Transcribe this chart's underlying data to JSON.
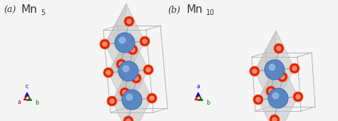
{
  "figsize": [
    4.74,
    1.7
  ],
  "dpi": 100,
  "background_color": "#f5f5f5",
  "panel_a_label": "(a)",
  "panel_b_label": "(b)",
  "panel_a_title": "Mn",
  "panel_a_subscript": "5",
  "panel_b_title": "Mn",
  "panel_b_subscript": "10",
  "label_fontsize": 9,
  "title_fontsize": 11,
  "atom_blue": "#5b86c4",
  "atom_blue_edge": "#3a6aaa",
  "atom_red": "#dd2200",
  "atom_red_inner": "#ff8866",
  "poly_gray": "#c0c0c0",
  "poly_alpha": 0.45,
  "poly_edge": "#999999",
  "cell_edge": "#aaaaaa",
  "bond_color": "#88aacc",
  "axis_blue": "#0000cc",
  "axis_red": "#cc0000",
  "axis_green": "#007700"
}
